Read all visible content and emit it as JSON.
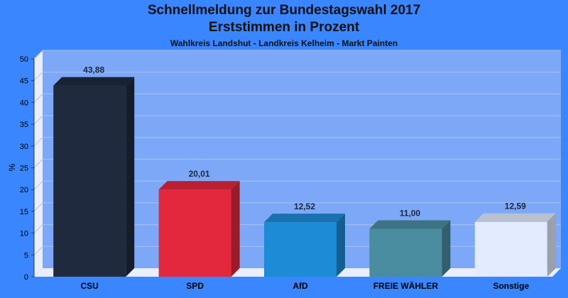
{
  "header": {
    "title_line1": "Schnellmeldung zur Bundestagswahl 2017",
    "title_line2": "Erststimmen in Prozent",
    "subtitle": "Wahlkreis Landshut - Landkreis Kelheim - Markt Painten"
  },
  "chart_data": {
    "type": "bar",
    "title": "Schnellmeldung zur Bundestagswahl 2017 Erststimmen in Prozent",
    "subtitle": "Wahlkreis Landshut - Landkreis Kelheim - Markt Painten",
    "xlabel": "",
    "ylabel": "%",
    "ylim": [
      0,
      50
    ],
    "yticks": [
      0,
      5,
      10,
      15,
      20,
      25,
      30,
      35,
      40,
      45,
      50
    ],
    "categories": [
      "CSU",
      "SPD",
      "AfD",
      "FREIE WÄHLER",
      "Sonstige"
    ],
    "values": [
      43.88,
      20.01,
      12.52,
      11.0,
      12.59
    ],
    "value_labels": [
      "43,88",
      "20,01",
      "12,52",
      "11,00",
      "12,59"
    ],
    "colors": [
      "#1f2a3f",
      "#e3273d",
      "#1d8bd6",
      "#4a8ca0",
      "#e2ebff"
    ],
    "grid": true,
    "style": "3d-bars"
  }
}
